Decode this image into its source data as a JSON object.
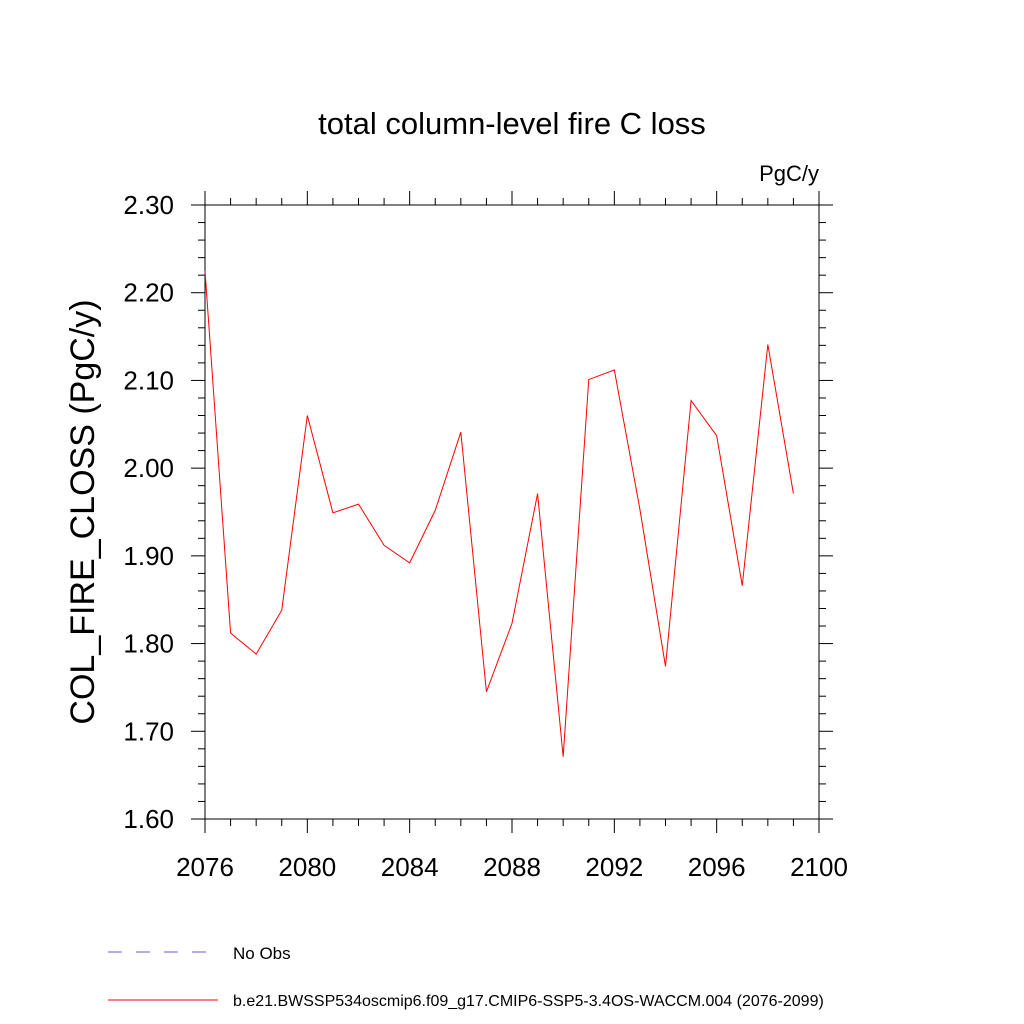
{
  "chart_data": {
    "type": "line",
    "title": "total column-level fire C loss",
    "units": "PgC/y",
    "ylabel": "COL_FIRE_CLOSS  (PgC/y)",
    "xlabel": "",
    "xlim": [
      2076,
      2100
    ],
    "ylim": [
      1.6,
      2.3
    ],
    "x_ticks": [
      2076,
      2080,
      2084,
      2088,
      2092,
      2096,
      2100
    ],
    "x_tick_labels": [
      "2076",
      "2080",
      "2084",
      "2088",
      "2092",
      "2096",
      "2100"
    ],
    "y_ticks": [
      1.6,
      1.7,
      1.8,
      1.9,
      2.0,
      2.1,
      2.2,
      2.3
    ],
    "y_tick_labels": [
      "1.60",
      "1.70",
      "1.80",
      "1.90",
      "2.00",
      "2.10",
      "2.20",
      "2.30"
    ],
    "grid": false,
    "legend_position": "bottom",
    "series": [
      {
        "name": "b.e21.BWSSP534oscmip6.f09_g17.CMIP6-SSP5-3.4OS-WACCM.004 (2076-2099)",
        "color": "#ff0000",
        "style": "solid",
        "x": [
          2076,
          2077,
          2078,
          2079,
          2080,
          2081,
          2082,
          2083,
          2084,
          2085,
          2086,
          2087,
          2088,
          2089,
          2090,
          2091,
          2092,
          2093,
          2094,
          2095,
          2096,
          2097,
          2098,
          2099
        ],
        "y": [
          2.225,
          1.812,
          1.788,
          1.838,
          2.06,
          1.949,
          1.959,
          1.912,
          1.892,
          1.952,
          2.041,
          1.745,
          1.823,
          1.971,
          1.671,
          2.101,
          2.112,
          1.953,
          1.774,
          2.077,
          2.037,
          1.866,
          2.141,
          1.971
        ]
      }
    ],
    "legend": [
      {
        "label": "No Obs",
        "color": "#6a5acd",
        "style": "dashed"
      },
      {
        "label": "b.e21.BWSSP534oscmip6.f09_g17.CMIP6-SSP5-3.4OS-WACCM.004 (2076-2099)",
        "color": "#ff0000",
        "style": "solid"
      }
    ]
  }
}
